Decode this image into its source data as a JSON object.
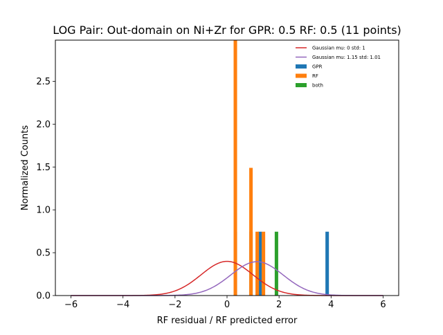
{
  "chart_data": {
    "type": "bar",
    "title": "LOG Pair: Out-domain on Ni+Zr for GPR: 0.5 RF: 0.5 (11 points)",
    "xlabel": "RF residual / RF predicted error",
    "ylabel": "Normalized Counts",
    "xlim": [
      -6.6,
      6.6
    ],
    "ylim": [
      0,
      2.98
    ],
    "xticks": [
      -6,
      -4,
      -2,
      0,
      2,
      4,
      6
    ],
    "xtick_labels": [
      "−6",
      "−4",
      "−2",
      "0",
      "2",
      "4",
      "6"
    ],
    "yticks": [
      0.0,
      0.5,
      1.0,
      1.5,
      2.0,
      2.5
    ],
    "ytick_labels": [
      "0.0",
      "0.5",
      "1.0",
      "1.5",
      "2.0",
      "2.5"
    ],
    "grid": false,
    "legend_position": "top-right",
    "bar_width": 0.134,
    "series": [
      {
        "name": "GPR",
        "kind": "bar",
        "color": "#1f77b4",
        "bars": [
          {
            "x": 0.32,
            "y": 0.745
          },
          {
            "x": 0.92,
            "y": 0.745
          },
          {
            "x": 1.27,
            "y": 0.745
          },
          {
            "x": 3.85,
            "y": 0.745
          }
        ]
      },
      {
        "name": "RF",
        "kind": "bar",
        "color": "#ff7f0e",
        "bars": [
          {
            "x": 0.32,
            "y": 2.98
          },
          {
            "x": 0.92,
            "y": 1.49
          },
          {
            "x": 1.16,
            "y": 0.745
          },
          {
            "x": 1.4,
            "y": 0.745
          }
        ]
      },
      {
        "name": "both",
        "kind": "bar",
        "color": "#2ca02c",
        "bars": [
          {
            "x": 1.9,
            "y": 0.745
          }
        ]
      },
      {
        "name": "Gaussian mu: 0 std: 1",
        "kind": "gaussian",
        "color": "#d62728",
        "mu": 0,
        "std": 1,
        "range": [
          -6,
          6
        ]
      },
      {
        "name": "Gaussian mu: 1.15 std: 1.01",
        "kind": "gaussian",
        "color": "#9467bd",
        "mu": 1.15,
        "std": 1.01,
        "range": [
          -6,
          6
        ]
      }
    ]
  }
}
